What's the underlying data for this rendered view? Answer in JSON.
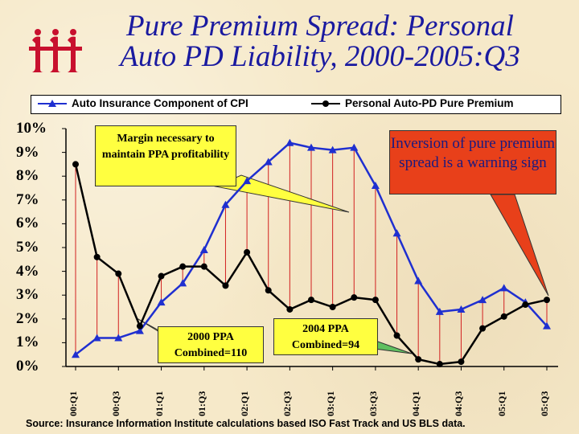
{
  "title_line1": "Pure Premium Spread: Personal",
  "title_line2": "Auto PD Liability, 2000-2005:Q3",
  "logo": {
    "icon": "iii-logo-icon",
    "color": "#c8102e"
  },
  "callouts": {
    "margin": "Margin necessary to maintain PPA profitability",
    "inversion": "Inversion of pure premium spread is a warning sign",
    "ppa2000": "2000 PPA Combined=110",
    "ppa2004": "2004 PPA Combined=94"
  },
  "source": "Source: Insurance Information Institute calculations based ISO Fast Track and US BLS data.",
  "chart_data": {
    "type": "line",
    "ylim": [
      0,
      10
    ],
    "yticks": [
      "0%",
      "1%",
      "2%",
      "3%",
      "4%",
      "5%",
      "6%",
      "7%",
      "8%",
      "9%",
      "10%"
    ],
    "xtick_labels": [
      "00:Q1",
      "00:Q3",
      "01:Q1",
      "01:Q3",
      "02:Q1",
      "02:Q3",
      "03:Q1",
      "03:Q3",
      "04:Q1",
      "04:Q3",
      "05:Q1",
      "05:Q3"
    ],
    "legend_position": "top",
    "series": [
      {
        "name": "Auto Insurance Component of CPI",
        "color": "#1f2fd0",
        "marker": "triangle",
        "values": [
          0.5,
          1.2,
          1.2,
          1.5,
          2.7,
          3.5,
          4.9,
          6.8,
          7.8,
          8.6,
          9.4,
          9.2,
          9.1,
          9.2,
          7.6,
          5.6,
          3.6,
          2.3,
          2.4,
          2.8,
          3.3,
          2.7,
          1.7
        ]
      },
      {
        "name": "Personal Auto-PD Pure Premium",
        "color": "#000000",
        "marker": "circle",
        "values": [
          8.5,
          4.6,
          3.9,
          1.7,
          3.8,
          4.2,
          4.2,
          3.4,
          4.8,
          3.2,
          2.4,
          2.8,
          2.5,
          2.9,
          2.8,
          1.3,
          0.3,
          0.1,
          0.2,
          1.6,
          2.1,
          2.6,
          2.8
        ]
      }
    ]
  }
}
